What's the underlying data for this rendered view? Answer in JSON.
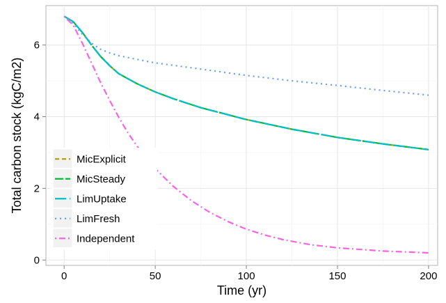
{
  "chart_data": {
    "type": "line",
    "xlabel": "Time (yr)",
    "ylabel": "Total carbon stock (kgC/m2)",
    "xlim": [
      -10,
      205
    ],
    "ylim": [
      -0.15,
      7.1
    ],
    "x_ticks": [
      "0",
      "50",
      "100",
      "150",
      "200"
    ],
    "y_ticks": [
      "0",
      "2",
      "4",
      "6"
    ],
    "grid": true,
    "legend_position": "bottom-left",
    "series": [
      {
        "name": "MicExplicit",
        "color": "#b79f00",
        "dash": "dashed",
        "x": [
          0,
          5,
          10,
          15,
          20,
          25,
          30,
          40,
          50,
          60,
          75,
          100,
          125,
          150,
          175,
          200
        ],
        "y": [
          6.8,
          6.65,
          6.35,
          6.0,
          5.68,
          5.42,
          5.2,
          4.92,
          4.69,
          4.5,
          4.25,
          3.92,
          3.65,
          3.42,
          3.24,
          3.08
        ]
      },
      {
        "name": "MicSteady",
        "color": "#00ba38",
        "dash": "longdash",
        "x": [
          0,
          5,
          10,
          15,
          20,
          25,
          30,
          40,
          50,
          60,
          75,
          100,
          125,
          150,
          175,
          200
        ],
        "y": [
          6.8,
          6.65,
          6.35,
          6.0,
          5.68,
          5.42,
          5.2,
          4.92,
          4.69,
          4.5,
          4.25,
          3.92,
          3.65,
          3.42,
          3.24,
          3.08
        ]
      },
      {
        "name": "LimUptake",
        "color": "#00bfc4",
        "dash": "longdash2",
        "x": [
          0,
          5,
          10,
          15,
          20,
          25,
          30,
          40,
          50,
          60,
          75,
          100,
          125,
          150,
          175,
          200
        ],
        "y": [
          6.8,
          6.65,
          6.35,
          6.0,
          5.68,
          5.42,
          5.2,
          4.92,
          4.69,
          4.5,
          4.25,
          3.92,
          3.65,
          3.42,
          3.24,
          3.08
        ]
      },
      {
        "name": "LimFresh",
        "color": "#619cff",
        "dash": "dotted",
        "x": [
          0,
          5,
          10,
          15,
          20,
          25,
          30,
          40,
          50,
          75,
          100,
          125,
          150,
          175,
          200
        ],
        "y": [
          6.8,
          6.6,
          6.3,
          6.05,
          5.88,
          5.78,
          5.7,
          5.6,
          5.5,
          5.33,
          5.15,
          5.0,
          4.87,
          4.73,
          4.6
        ]
      },
      {
        "name": "Independent",
        "color": "#f564e3",
        "dash": "dotdash",
        "x": [
          0,
          5,
          10,
          15,
          20,
          25,
          30,
          35,
          40,
          45,
          50,
          60,
          70,
          80,
          90,
          100,
          110,
          120,
          135,
          150,
          175,
          200
        ],
        "y": [
          6.8,
          6.55,
          6.05,
          5.5,
          4.95,
          4.45,
          3.98,
          3.55,
          3.18,
          2.85,
          2.55,
          2.05,
          1.65,
          1.33,
          1.07,
          0.86,
          0.7,
          0.57,
          0.43,
          0.34,
          0.25,
          0.2
        ]
      }
    ]
  }
}
